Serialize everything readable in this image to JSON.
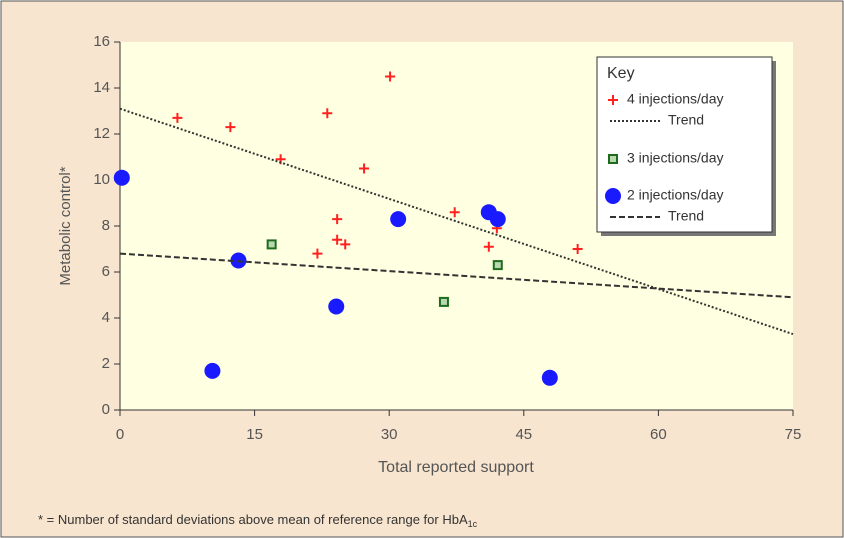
{
  "chart_data": {
    "type": "scatter",
    "x_label": "Total reported support",
    "y_label": "Metabolic control*",
    "footnote": "* = Number of standard deviations above mean of reference range for HbA",
    "footnote_subscript": "1c",
    "legend_title": "Key",
    "legend": "upper right",
    "xlim": [
      0,
      75
    ],
    "xticks": [
      0,
      15,
      30,
      45,
      60,
      75
    ],
    "ylim": [
      0,
      16
    ],
    "yticks": [
      0,
      2,
      4,
      6,
      8,
      10,
      12,
      14,
      16
    ],
    "series": [
      {
        "name": "4 injections/day",
        "color": "#ff2020",
        "marker": "plus",
        "x": [
          6.4,
          12.3,
          17.9,
          23.1,
          30.1,
          27.2,
          24.2,
          24.2,
          25.1,
          22.0,
          37.3,
          41.1,
          42.0,
          51.0
        ],
        "values": [
          12.7,
          12.3,
          10.9,
          12.9,
          14.5,
          10.5,
          8.3,
          7.4,
          7.2,
          6.8,
          8.6,
          7.1,
          7.9,
          7.0
        ]
      },
      {
        "name": "Trend",
        "color": "#333333",
        "line": "dotted",
        "x": [
          0,
          75
        ],
        "values": [
          13.1,
          3.3
        ]
      },
      {
        "name": "3 injections/day",
        "color": "#1e6b1e",
        "marker": "square",
        "x": [
          16.9,
          36.1,
          42.1
        ],
        "values": [
          7.2,
          4.7,
          6.3
        ]
      },
      {
        "name": "2 injections/day",
        "color": "#1a1aff",
        "marker": "circle",
        "x": [
          0.2,
          13.2,
          24.1,
          31.0,
          41.1,
          42.1,
          10.3,
          47.9
        ],
        "values": [
          10.1,
          6.5,
          4.5,
          8.3,
          8.6,
          8.3,
          1.7,
          1.4
        ]
      },
      {
        "name": "Trend",
        "color": "#333333",
        "line": "dashed",
        "x": [
          0,
          75
        ],
        "values": [
          6.8,
          4.9
        ]
      }
    ]
  }
}
